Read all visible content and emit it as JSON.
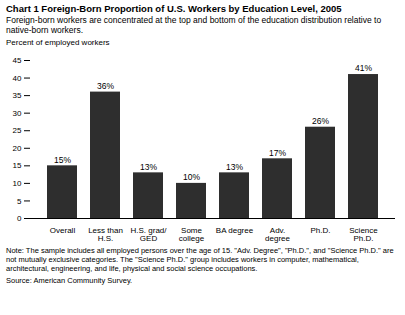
{
  "chart_data": {
    "type": "bar",
    "title": "Chart 1  Foreign-Born Proportion of U.S. Workers by Education Level, 2005",
    "subtitle": "Foreign-born workers are concentrated at the top and bottom of the education distribution relative to native-born workers.",
    "y_label": "Percent of employed workers",
    "categories": [
      "Overall",
      "Less than H.S.",
      "H.S. grad/ GED",
      "Some college",
      "BA degree",
      "Adv. degree",
      "Ph.D.",
      "Science Ph.D."
    ],
    "values": [
      15,
      36,
      13,
      10,
      13,
      17,
      26,
      41
    ],
    "value_labels": [
      "15%",
      "36%",
      "13%",
      "10%",
      "13%",
      "17%",
      "26%",
      "41%"
    ],
    "data_labels": true,
    "color": "#2e2e2e",
    "ylim": [
      0,
      45
    ],
    "yticks": [
      0,
      5,
      10,
      15,
      20,
      25,
      30,
      35,
      40,
      45
    ],
    "grid": false,
    "note": "Note: The sample includes all employed persons over the age of 15. \"Adv. Degree\", \"Ph.D.\", and \"Science Ph.D.\" are not mutually exclusive categories. The \"Science Ph.D.\" group includes workers in computer, mathematical, architectural, engineering, and life, physical and social science occupations.",
    "source": "Source: American Community Survey."
  }
}
